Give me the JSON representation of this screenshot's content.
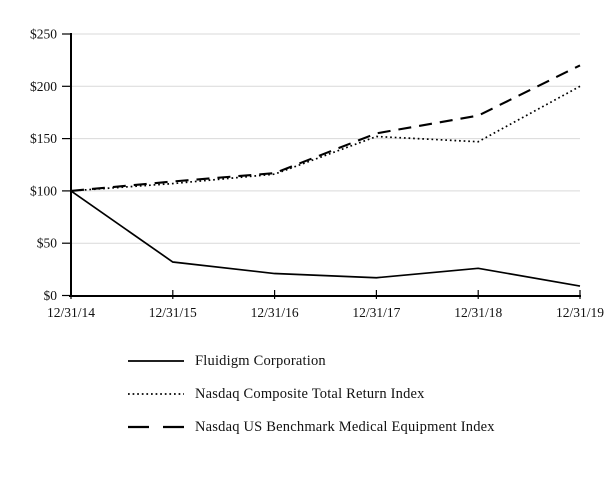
{
  "chart_data": {
    "type": "line",
    "x": [
      "12/31/14",
      "12/31/15",
      "12/31/16",
      "12/31/17",
      "12/31/18",
      "12/31/19"
    ],
    "series": [
      {
        "name": "Fluidigm Corporation",
        "style": "solid",
        "values": [
          100,
          32,
          21,
          17,
          26,
          9
        ]
      },
      {
        "name": "Nasdaq Composite Total Return Index",
        "style": "dotted",
        "values": [
          100,
          107,
          116,
          152,
          147,
          200
        ]
      },
      {
        "name": "Nasdaq US Benchmark Medical Equipment Index",
        "style": "dashed",
        "values": [
          100,
          109,
          117,
          155,
          172,
          220
        ]
      }
    ],
    "y_ticks": [
      0,
      50,
      100,
      150,
      200,
      250
    ],
    "y_tick_labels": [
      "$0",
      "$50",
      "$100",
      "$150",
      "$200",
      "$250"
    ],
    "ylim": [
      0,
      250
    ],
    "grid": true,
    "legend_position": "bottom-left",
    "line_color": "#000000",
    "grid_color": "#d9d9d9",
    "axis_color": "#000000",
    "label_color": "#111111"
  }
}
